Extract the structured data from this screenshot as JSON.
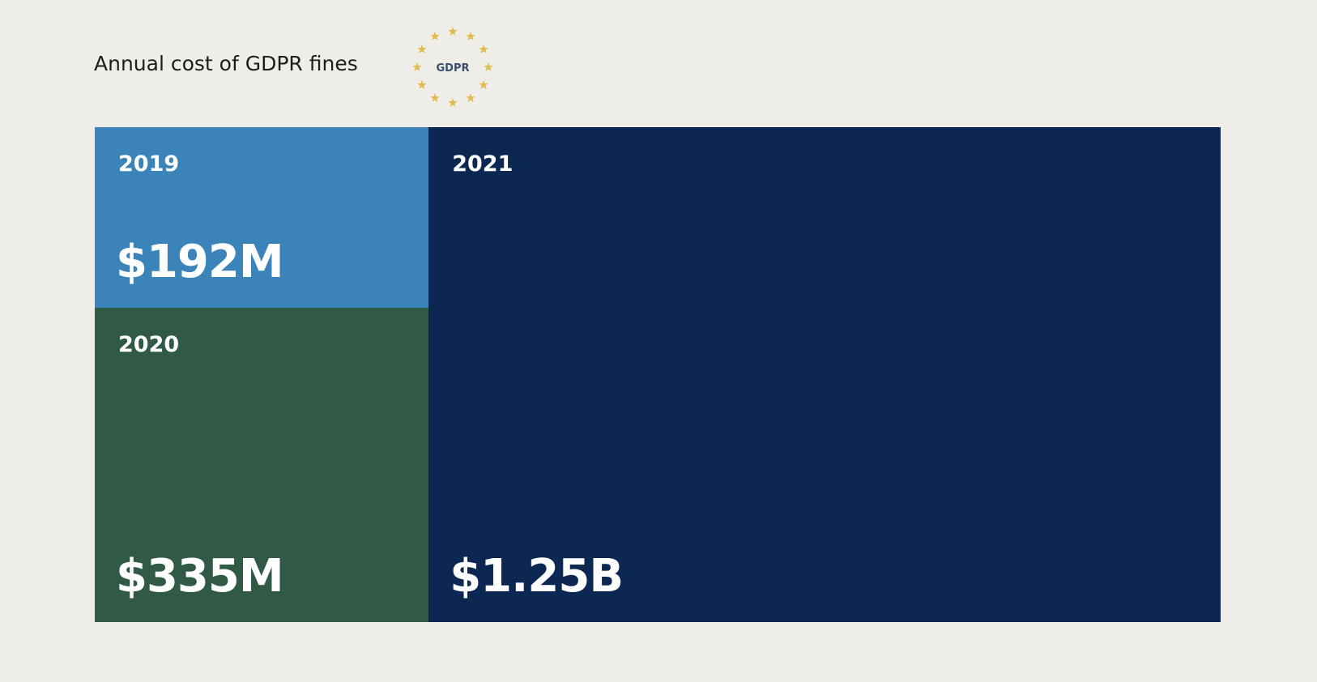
{
  "header": {
    "title": "Annual cost of GDPR fines",
    "logo_text": "GDPR",
    "logo_star_color": "#e0bc55",
    "logo_text_color": "#3a4f6e"
  },
  "chart_data": {
    "type": "treemap",
    "title": "Annual cost of GDPR fines",
    "unit": "USD",
    "items": [
      {
        "year": "2019",
        "label": "$192M",
        "value": 192,
        "color": "#3a84b9"
      },
      {
        "year": "2020",
        "label": "$335M",
        "value": 335,
        "color": "#305a45"
      },
      {
        "year": "2021",
        "label": "$1.25B",
        "value": 1250,
        "color": "#0b2752"
      }
    ]
  }
}
